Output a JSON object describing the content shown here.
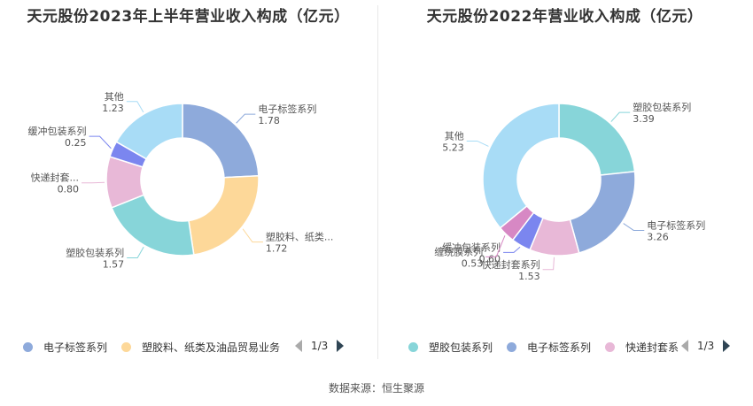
{
  "source": "数据来源：恒生聚源",
  "chart_data": [
    {
      "type": "pie",
      "title": "天元股份2023年上半年营业收入构成（亿元）",
      "slices": [
        {
          "name": "电子标签系列",
          "label": "电子标签系列",
          "value": 1.78,
          "display_value": "1.78",
          "color": "#8eaadb"
        },
        {
          "name": "塑胶料、纸类及油品贸易业务",
          "label": "塑胶料、纸类...",
          "value": 1.72,
          "display_value": "1.72",
          "color": "#fdd899"
        },
        {
          "name": "塑胶包装系列",
          "label": "塑胶包装系列",
          "value": 1.57,
          "display_value": "1.57",
          "color": "#87d5d9"
        },
        {
          "name": "快递封套系列",
          "label": "快递封套...",
          "value": 0.8,
          "display_value": "0.80",
          "color": "#e8b8d7"
        },
        {
          "name": "缓冲包装系列",
          "label": "缓冲包装系列",
          "value": 0.25,
          "display_value": "0.25",
          "color": "#7b86ef"
        },
        {
          "name": "其他",
          "label": "其他",
          "value": 1.23,
          "display_value": "1.23",
          "color": "#a8dcf6"
        }
      ],
      "legend": {
        "items": [
          {
            "label": "电子标签系列",
            "color": "#8eaadb"
          },
          {
            "label": "塑胶料、纸类及油品贸易业务",
            "color": "#fdd899"
          }
        ],
        "page": "1/3",
        "placement": "bottom"
      }
    },
    {
      "type": "pie",
      "title": "天元股份2022年营业收入构成（亿元）",
      "slices": [
        {
          "name": "塑胶包装系列",
          "label": "塑胶包装系列",
          "value": 3.39,
          "display_value": "3.39",
          "color": "#87d5d9"
        },
        {
          "name": "电子标签系列",
          "label": "电子标签系列",
          "value": 3.26,
          "display_value": "3.26",
          "color": "#8eaadb"
        },
        {
          "name": "快递封套系列",
          "label": "快递封套系列",
          "value": 1.53,
          "display_value": "1.53",
          "color": "#e8b8d7"
        },
        {
          "name": "缓冲包装系列",
          "label": "缓冲包装系列",
          "value": 0.6,
          "display_value": "0.60",
          "color": "#7b86ef"
        },
        {
          "name": "缠绕膜系列",
          "label": "缠绕膜系列",
          "value": 0.53,
          "display_value": "0.53",
          "color": "#d788c4"
        },
        {
          "name": "其他",
          "label": "其他",
          "value": 5.23,
          "display_value": "5.23",
          "color": "#a8dcf6"
        }
      ],
      "legend": {
        "items": [
          {
            "label": "塑胶包装系列",
            "color": "#87d5d9"
          },
          {
            "label": "电子标签系列",
            "color": "#8eaadb"
          },
          {
            "label": "快递封套系",
            "color": "#e8b8d7"
          }
        ],
        "page": "1/3",
        "placement": "bottom"
      }
    }
  ]
}
